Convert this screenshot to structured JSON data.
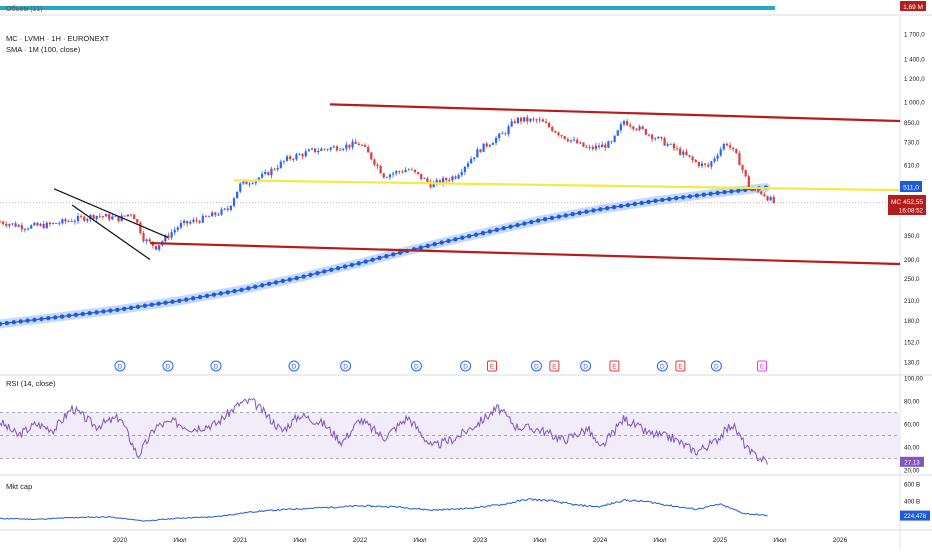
{
  "header": {
    "symbol_line": "MC · LVMH · 1H · EURONEXT",
    "indicator_line": "SMA · 1M (100, close)"
  },
  "top_strip": {
    "label": "Объем (21)",
    "value_badge": "1,69 М"
  },
  "colors": {
    "candle_up": "#2962ff",
    "candle_down": "#e53935",
    "sma": "#1e5bdc",
    "sma_glow": "#bcd3f7",
    "channel": "#b71c1c",
    "support": "#f5e94a",
    "rsi": "#7e57c2",
    "rsi_band": "#ede7f6",
    "mktcap": "#1e5bdc",
    "price_badge": "#b71c1c",
    "level_badge": "#1e5bdc",
    "earnings_e": "#e53935",
    "dividend_d": "#2962ff"
  },
  "chart_data": [
    {
      "type": "line",
      "panel": "price",
      "scale": "log",
      "ylim": [
        120,
        1900
      ],
      "x_ticks": [
        "2020",
        "Июл",
        "2021",
        "Июл",
        "2022",
        "Июл",
        "2023",
        "Июл",
        "2024",
        "Июл",
        "2025",
        "Июл",
        "2026"
      ],
      "y_ticks": [
        "1 700,0",
        "1 400,0",
        "1 200,0",
        "1 000,0",
        "850,0",
        "730,0",
        "610,0",
        "511,0",
        "450,0",
        "350,0",
        "290,0",
        "250,0",
        "210,0",
        "180,0",
        "152,0",
        "130,0"
      ],
      "series": [
        {
          "name": "MC",
          "role": "price",
          "x": [
            2019.0,
            2019.2,
            2019.4,
            2019.6,
            2019.8,
            2020.0,
            2020.1,
            2020.2,
            2020.3,
            2020.5,
            2020.7,
            2020.9,
            2021.0,
            2021.2,
            2021.4,
            2021.6,
            2021.8,
            2022.0,
            2022.2,
            2022.4,
            2022.6,
            2022.8,
            2023.0,
            2023.2,
            2023.3,
            2023.5,
            2023.7,
            2023.9,
            2024.1,
            2024.2,
            2024.4,
            2024.6,
            2024.8,
            2024.9,
            2025.05,
            2025.15,
            2025.25,
            2025.35,
            2025.45
          ],
          "y": [
            390,
            375,
            380,
            395,
            410,
            400,
            420,
            340,
            320,
            380,
            400,
            430,
            520,
            560,
            640,
            680,
            700,
            720,
            560,
            590,
            520,
            560,
            690,
            780,
            870,
            860,
            760,
            690,
            720,
            860,
            780,
            700,
            620,
            600,
            730,
            640,
            500,
            490,
            452.55
          ]
        },
        {
          "name": "SMA · 1M (100, close)",
          "role": "sma",
          "x": [
            2019.0,
            2019.5,
            2020.0,
            2020.5,
            2021.0,
            2021.5,
            2022.0,
            2022.5,
            2023.0,
            2023.5,
            2024.0,
            2024.5,
            2025.0,
            2025.4
          ],
          "y": [
            175,
            185,
            196,
            210,
            228,
            252,
            282,
            318,
            355,
            395,
            430,
            462,
            490,
            511
          ]
        }
      ],
      "trend_lines": [
        {
          "name": "upper-channel",
          "x": [
            2021.75,
            2026.5
          ],
          "y": [
            980,
            860
          ]
        },
        {
          "name": "lower-channel",
          "x": [
            2020.25,
            2026.5
          ],
          "y": [
            330,
            280
          ]
        },
        {
          "name": "support",
          "x": [
            2020.95,
            2026.5
          ],
          "y": [
            540,
            500
          ]
        },
        {
          "name": "flag-top",
          "x": [
            2019.45,
            2020.4
          ],
          "y": [
            505,
            345
          ]
        },
        {
          "name": "flag-bottom",
          "x": [
            2019.6,
            2020.25
          ],
          "y": [
            445,
            290
          ]
        }
      ],
      "events": [
        {
          "x": 2020.0,
          "label": "D"
        },
        {
          "x": 2020.4,
          "label": "D"
        },
        {
          "x": 2020.8,
          "label": "D"
        },
        {
          "x": 2021.45,
          "label": "D"
        },
        {
          "x": 2021.88,
          "label": "D"
        },
        {
          "x": 2022.47,
          "label": "D"
        },
        {
          "x": 2022.88,
          "label": "D"
        },
        {
          "x": 2023.1,
          "label": "E"
        },
        {
          "x": 2023.47,
          "label": "D"
        },
        {
          "x": 2023.62,
          "label": "E"
        },
        {
          "x": 2023.88,
          "label": "D"
        },
        {
          "x": 2024.12,
          "label": "E"
        },
        {
          "x": 2024.52,
          "label": "D"
        },
        {
          "x": 2024.67,
          "label": "E"
        },
        {
          "x": 2024.97,
          "label": "D"
        },
        {
          "x": 2025.35,
          "label": "E"
        }
      ]
    },
    {
      "type": "line",
      "panel": "rsi",
      "title": "RSI (14, close)",
      "ylim": [
        20,
        100
      ],
      "y_ticks": [
        "100,00",
        "80,00",
        "60,00",
        "40,00",
        "20,00"
      ],
      "band": [
        30,
        70
      ],
      "midline": 50,
      "series": [
        {
          "name": "RSI",
          "x": [
            2019.0,
            2019.15,
            2019.3,
            2019.45,
            2019.6,
            2019.8,
            2020.0,
            2020.15,
            2020.3,
            2020.45,
            2020.6,
            2020.8,
            2021.0,
            2021.1,
            2021.2,
            2021.35,
            2021.5,
            2021.7,
            2021.85,
            2022.0,
            2022.2,
            2022.4,
            2022.6,
            2022.8,
            2023.0,
            2023.15,
            2023.3,
            2023.5,
            2023.7,
            2023.9,
            2024.0,
            2024.2,
            2024.4,
            2024.6,
            2024.8,
            2024.95,
            2025.1,
            2025.25,
            2025.4
          ],
          "y": [
            62,
            50,
            60,
            55,
            74,
            58,
            66,
            32,
            58,
            62,
            56,
            60,
            78,
            80,
            70,
            54,
            68,
            60,
            44,
            64,
            48,
            66,
            40,
            48,
            62,
            74,
            58,
            55,
            46,
            56,
            38,
            65,
            52,
            48,
            36,
            44,
            60,
            35,
            27.13
          ]
        }
      ],
      "last_value": "27,13"
    },
    {
      "type": "line",
      "panel": "mktcap",
      "title": "Mkt cap",
      "y_ticks": [
        "600 B",
        "400 B"
      ],
      "series": [
        {
          "name": "Mkt cap",
          "x": [
            2019.0,
            2019.3,
            2019.6,
            2019.9,
            2020.2,
            2020.5,
            2020.8,
            2021.1,
            2021.4,
            2021.7,
            2022.0,
            2022.3,
            2022.6,
            2022.9,
            2023.2,
            2023.4,
            2023.6,
            2023.8,
            2024.0,
            2024.2,
            2024.4,
            2024.6,
            2024.8,
            2025.0,
            2025.2,
            2025.4
          ],
          "y": [
            190,
            180,
            200,
            210,
            160,
            195,
            210,
            270,
            300,
            320,
            340,
            330,
            290,
            310,
            360,
            420,
            400,
            350,
            330,
            410,
            390,
            340,
            300,
            360,
            250,
            224.478
          ]
        }
      ],
      "last_value": "224,478"
    }
  ],
  "badges": {
    "price_symbol": "MC",
    "price_value": "452,55",
    "countdown": "16:08:52",
    "level_value": "511,0"
  }
}
